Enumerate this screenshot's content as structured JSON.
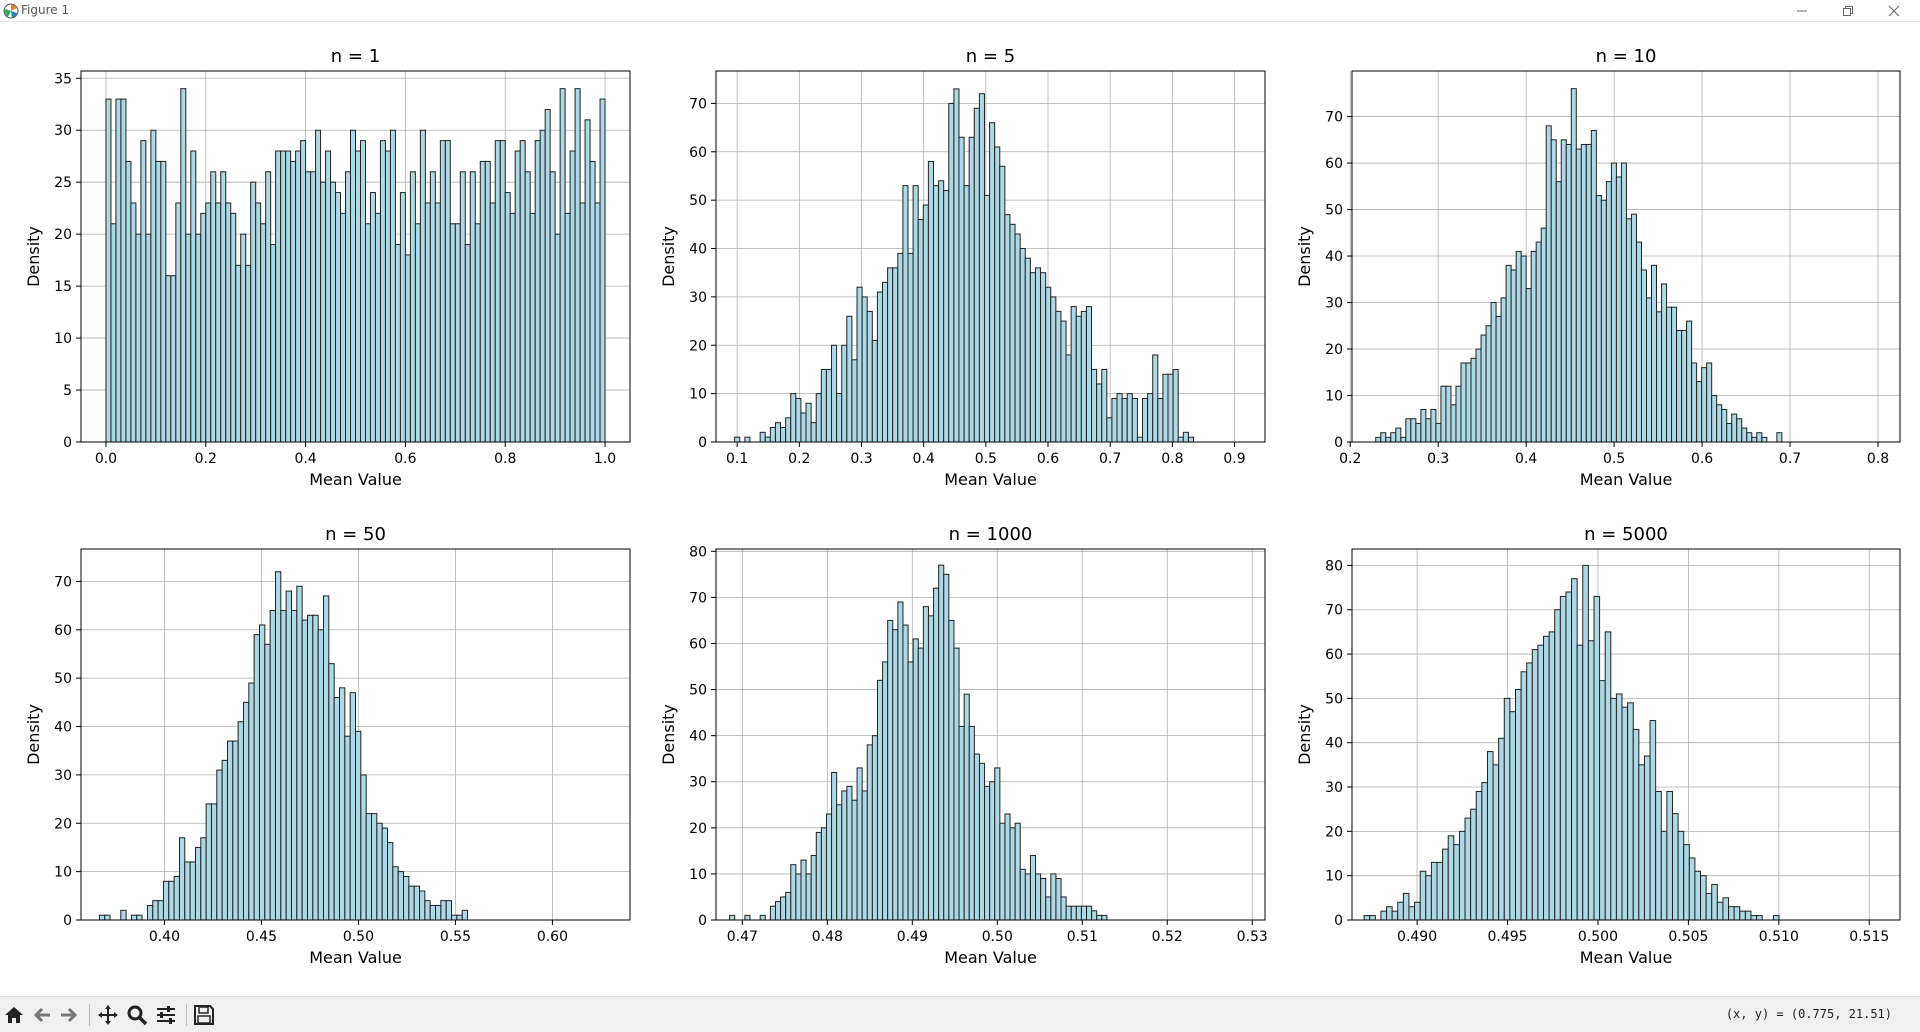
{
  "window": {
    "title": "Figure 1",
    "minimize_icon": "minimize-icon",
    "restore_icon": "restore-icon",
    "close_icon": "close-icon"
  },
  "toolbar": {
    "buttons": [
      "home-icon",
      "back-icon",
      "forward-icon",
      "pan-icon",
      "zoom-icon",
      "configure-subplots-icon",
      "save-icon"
    ],
    "coords": "(x, y) = (0.775, 21.51)"
  },
  "colors": {
    "bar_fill": "#add8e6",
    "bar_edge": "#222222",
    "grid": "#b0b0b0",
    "axis": "#000000"
  },
  "chart_data": [
    {
      "type": "bar",
      "title": "n = 1",
      "xlabel": "Mean Value",
      "ylabel": "Density",
      "xlim": [
        -0.05,
        1.05
      ],
      "ylim": [
        0,
        35.7
      ],
      "xticks": [
        0.0,
        0.2,
        0.4,
        0.6,
        0.8,
        1.0
      ],
      "xticklabels": [
        "0.0",
        "0.2",
        "0.4",
        "0.6",
        "0.8",
        "1.0"
      ],
      "yticks": [
        0,
        5,
        10,
        15,
        20,
        25,
        30,
        35
      ],
      "yticklabels": [
        "0",
        "5",
        "10",
        "15",
        "20",
        "25",
        "30",
        "35"
      ],
      "grid": true,
      "bin_start": 0.0,
      "bin_width": 0.01,
      "values": [
        33,
        21,
        33,
        33,
        27,
        23,
        20,
        29,
        20,
        30,
        27,
        27,
        16,
        16,
        23,
        34,
        20,
        28,
        20,
        22,
        23,
        26,
        23,
        26,
        23,
        22,
        17,
        20,
        17,
        25,
        23,
        21,
        26,
        19,
        28,
        28,
        28,
        27,
        28,
        29,
        26,
        26,
        30,
        25,
        28,
        25,
        24,
        22,
        26,
        30,
        28,
        29,
        21,
        24,
        22,
        29,
        28,
        30,
        19,
        24,
        18,
        26,
        21,
        30,
        23,
        26,
        23,
        29,
        29,
        21,
        21,
        26,
        19,
        26,
        21,
        27,
        27,
        23,
        29,
        29,
        24,
        22,
        28,
        29,
        26,
        22,
        29,
        30,
        32,
        26,
        20,
        34,
        22,
        28,
        34,
        23,
        31,
        27,
        23,
        33
      ]
    },
    {
      "type": "bar",
      "title": "n = 5",
      "xlabel": "Mean Value",
      "ylabel": "Density",
      "xlim": [
        0.066,
        0.949
      ],
      "ylim": [
        0,
        76.7
      ],
      "xticks": [
        0.1,
        0.2,
        0.3,
        0.4,
        0.5,
        0.6,
        0.7,
        0.8,
        0.9
      ],
      "xticklabels": [
        "0.1",
        "0.2",
        "0.3",
        "0.4",
        "0.5",
        "0.6",
        "0.7",
        "0.8",
        "0.9"
      ],
      "yticks": [
        0,
        10,
        20,
        30,
        40,
        50,
        60,
        70
      ],
      "yticklabels": [
        "0",
        "10",
        "20",
        "30",
        "40",
        "50",
        "60",
        "70"
      ],
      "grid": true,
      "bin_start": 0.096,
      "bin_width": 0.0082,
      "values": [
        1,
        0,
        1,
        0,
        0,
        2,
        1,
        3,
        4,
        3,
        5,
        10,
        9,
        6,
        8,
        4,
        10,
        15,
        15,
        20,
        10,
        20,
        26,
        17,
        32,
        30,
        27,
        21,
        31,
        33,
        36,
        36,
        39,
        53,
        39,
        53,
        46,
        49,
        58,
        53,
        54,
        52,
        70,
        73,
        63,
        53,
        63,
        69,
        72,
        51,
        66,
        61,
        57,
        47,
        45,
        43,
        40,
        38,
        35,
        36,
        35,
        32,
        30,
        27,
        25,
        18,
        28,
        26,
        27,
        28,
        15,
        12,
        15,
        5,
        9,
        10,
        9,
        10,
        9,
        1,
        9,
        10,
        18,
        9,
        14,
        14,
        15,
        1,
        2,
        1
      ]
    },
    {
      "type": "bar",
      "title": "n = 10",
      "xlabel": "Mean Value",
      "ylabel": "Density",
      "xlim": [
        0.202,
        0.825
      ],
      "ylim": [
        0,
        79.8
      ],
      "xticks": [
        0.2,
        0.3,
        0.4,
        0.5,
        0.6,
        0.7,
        0.8
      ],
      "xticklabels": [
        "0.2",
        "0.3",
        "0.4",
        "0.5",
        "0.6",
        "0.7",
        "0.8"
      ],
      "yticks": [
        0,
        10,
        20,
        30,
        40,
        50,
        60,
        70
      ],
      "yticklabels": [
        "0",
        "10",
        "20",
        "30",
        "40",
        "50",
        "60",
        "70"
      ],
      "grid": true,
      "bin_start": 0.229,
      "bin_width": 0.0057,
      "values": [
        1,
        2,
        1,
        2,
        3,
        1,
        5,
        5,
        4,
        7,
        5,
        7,
        4,
        12,
        12,
        8,
        12,
        17,
        17,
        18,
        20,
        23,
        25,
        30,
        27,
        31,
        38,
        37,
        41,
        40,
        33,
        41,
        43,
        46,
        68,
        65,
        56,
        65,
        64,
        76,
        63,
        64,
        64,
        67,
        53,
        52,
        56,
        60,
        57,
        60,
        48,
        49,
        43,
        37,
        31,
        38,
        28,
        34,
        29,
        29,
        24,
        24,
        26,
        17,
        13,
        16,
        17,
        10,
        8,
        7,
        4,
        6,
        5,
        3,
        2,
        1,
        2,
        1,
        0,
        0,
        2
      ]
    },
    {
      "type": "bar",
      "title": "n = 50",
      "xlabel": "Mean Value",
      "ylabel": "Density",
      "xlim": [
        0.357,
        0.64
      ],
      "ylim": [
        0,
        76.7
      ],
      "xticks": [
        0.4,
        0.45,
        0.5,
        0.55,
        0.6
      ],
      "xticklabels": [
        "0.40",
        "0.45",
        "0.50",
        "0.55",
        "0.60"
      ],
      "yticks": [
        0,
        10,
        20,
        30,
        40,
        50,
        60,
        70
      ],
      "yticklabels": [
        "0",
        "10",
        "20",
        "30",
        "40",
        "50",
        "60",
        "70"
      ],
      "grid": true,
      "bin_start": 0.3665,
      "bin_width": 0.00275,
      "values": [
        1,
        1,
        0,
        0,
        2,
        0,
        1,
        1,
        0,
        3,
        4,
        4,
        8,
        8,
        9,
        17,
        12,
        12,
        15,
        17,
        24,
        24,
        31,
        33,
        37,
        37,
        41,
        45,
        49,
        59,
        61,
        57,
        64,
        72,
        64,
        68,
        64,
        69,
        62,
        63,
        63,
        60,
        67,
        53,
        46,
        48,
        38,
        47,
        39,
        30,
        22,
        22,
        20,
        19,
        16,
        11,
        10,
        9,
        7,
        7,
        6,
        4,
        3,
        3,
        4,
        4,
        1,
        1,
        2
      ]
    },
    {
      "type": "bar",
      "title": "n = 1000",
      "xlabel": "Mean Value",
      "ylabel": "Density",
      "xlim": [
        0.4669,
        0.5315
      ],
      "ylim": [
        0,
        80.5
      ],
      "xticks": [
        0.47,
        0.48,
        0.49,
        0.5,
        0.51,
        0.52,
        0.53
      ],
      "xticklabels": [
        "0.47",
        "0.48",
        "0.49",
        "0.50",
        "0.51",
        "0.52",
        "0.53"
      ],
      "yticks": [
        0,
        10,
        20,
        30,
        40,
        50,
        60,
        70,
        80
      ],
      "yticklabels": [
        "0",
        "10",
        "20",
        "30",
        "40",
        "50",
        "60",
        "70",
        "80"
      ],
      "grid": true,
      "bin_start": 0.4685,
      "bin_width": 0.0006,
      "values": [
        1,
        0,
        0,
        1,
        0,
        0,
        1,
        0,
        3,
        4,
        5,
        6,
        12,
        10,
        13,
        10,
        14,
        19,
        20,
        23,
        32,
        25,
        28,
        29,
        26,
        33,
        28,
        38,
        40,
        52,
        56,
        65,
        63,
        69,
        64,
        56,
        61,
        59,
        68,
        66,
        72,
        77,
        75,
        65,
        59,
        42,
        49,
        42,
        36,
        34,
        29,
        30,
        33,
        21,
        23,
        20,
        21,
        11,
        10,
        14,
        10,
        9,
        5,
        10,
        9,
        5,
        3,
        3,
        3,
        3,
        3,
        2,
        1,
        1
      ]
    },
    {
      "type": "bar",
      "title": "n = 5000",
      "xlabel": "Mean Value",
      "ylabel": "Density",
      "xlim": [
        0.4864,
        0.5167
      ],
      "ylim": [
        0,
        83.7
      ],
      "xticks": [
        0.49,
        0.495,
        0.5,
        0.505,
        0.51,
        0.515
      ],
      "xticklabels": [
        "0.490",
        "0.495",
        "0.500",
        "0.505",
        "0.510",
        "0.515"
      ],
      "yticks": [
        0,
        10,
        20,
        30,
        40,
        50,
        60,
        70,
        80
      ],
      "yticklabels": [
        "0",
        "10",
        "20",
        "30",
        "40",
        "50",
        "60",
        "70",
        "80"
      ],
      "grid": true,
      "bin_start": 0.48707,
      "bin_width": 0.00031,
      "values": [
        1,
        1,
        0,
        2,
        3,
        2,
        4,
        6,
        3,
        4,
        11,
        10,
        13,
        13,
        16,
        19,
        17,
        20,
        23,
        25,
        29,
        31,
        38,
        35,
        41,
        50,
        47,
        52,
        56,
        58,
        61,
        62,
        64,
        65,
        70,
        73,
        74,
        77,
        62,
        80,
        63,
        73,
        54,
        65,
        50,
        51,
        48,
        49,
        43,
        35,
        37,
        45,
        29,
        20,
        29,
        24,
        20,
        17,
        14,
        11,
        10,
        6,
        8,
        4,
        5,
        3,
        3,
        2,
        2,
        1,
        1,
        0,
        0,
        1
      ]
    }
  ]
}
